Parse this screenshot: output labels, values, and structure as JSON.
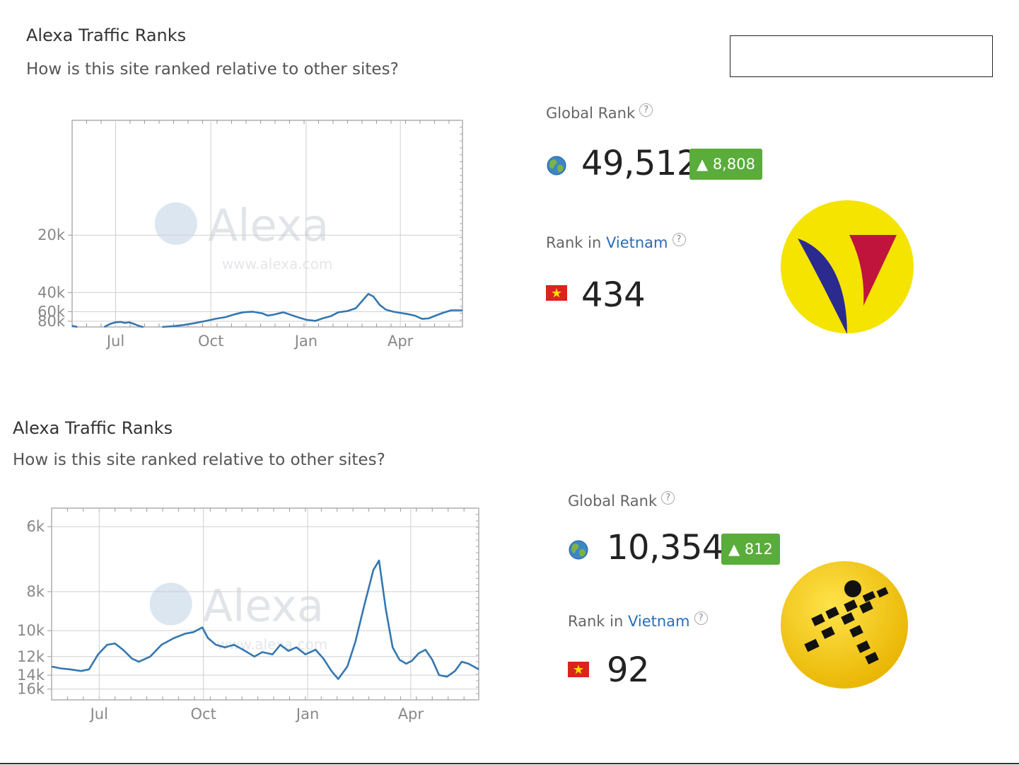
{
  "panels": [
    {
      "title": "Alexa Traffic Ranks",
      "subtitle": "How is this site ranked relative to other sites?",
      "global_rank_label": "Global Rank",
      "global_rank_value": "49,512",
      "global_rank_delta": "▲ 8,808",
      "country_rank_prefix": "Rank in",
      "country_name": "Vietnam",
      "country_rank_value": "434",
      "help_glyph": "?",
      "logo_icon": "v-shape-logo-icon",
      "colors": {
        "delta_badge": "#5aac3b",
        "link": "#2a6db5",
        "line": "#3577b0",
        "logo_bg": "#f5e300",
        "logo_blue": "#2b2a8f",
        "logo_red": "#c0143c"
      }
    },
    {
      "title": "Alexa Traffic Ranks",
      "subtitle": "How is this site ranked relative to other sites?",
      "global_rank_label": "Global Rank",
      "global_rank_value": "10,354",
      "global_rank_delta": "▲ 812",
      "country_rank_prefix": "Rank in",
      "country_name": "Vietnam",
      "country_rank_value": "92",
      "help_glyph": "?",
      "logo_icon": "running-man-logo-icon",
      "colors": {
        "delta_badge": "#5aac3b",
        "link": "#2a6db5",
        "line": "#3577b0",
        "logo_bg": "#f3c600",
        "logo_figure": "#111111"
      }
    }
  ],
  "chart_data": [
    {
      "type": "line",
      "title": "",
      "xlabel": "",
      "ylabel": "",
      "y_scale": "reciprocal (rank, smaller is higher)",
      "y_inverted": true,
      "ylim": [
        10000,
        100000
      ],
      "xlim": [
        "2015-05-20",
        "2016-05-31"
      ],
      "x_ticks": [
        {
          "x": "2015-07-01",
          "label": "Jul"
        },
        {
          "x": "2015-10-01",
          "label": "Oct"
        },
        {
          "x": "2016-01-01",
          "label": "Jan"
        },
        {
          "x": "2016-04-01",
          "label": "Apr"
        }
      ],
      "y_ticks": [
        {
          "y": 20000,
          "label": "20k"
        },
        {
          "y": 40000,
          "label": "40k"
        },
        {
          "y": 60000,
          "label": "60k"
        },
        {
          "y": 80000,
          "label": "80k"
        }
      ],
      "grid": true,
      "watermark": [
        "Alexa",
        "www.alexa.com"
      ],
      "series": [
        {
          "segments": [
            [
              [
                "2015-05-20",
                95000
              ],
              [
                "2015-05-25",
                100000
              ]
            ],
            [
              [
                "2015-06-20",
                100000
              ],
              [
                "2015-06-26",
                88000
              ],
              [
                "2015-07-01",
                83000
              ],
              [
                "2015-07-06",
                82000
              ],
              [
                "2015-07-10",
                85000
              ],
              [
                "2015-07-14",
                83000
              ],
              [
                "2015-07-20",
                90000
              ],
              [
                "2015-07-25",
                98000
              ],
              [
                "2015-07-28",
                100000
              ]
            ],
            [
              [
                "2015-08-15",
                100000
              ],
              [
                "2015-08-25",
                97000
              ],
              [
                "2015-09-05",
                92000
              ],
              [
                "2015-09-15",
                86000
              ],
              [
                "2015-09-25",
                80000
              ],
              [
                "2015-10-05",
                74000
              ],
              [
                "2015-10-15",
                70000
              ],
              [
                "2015-10-25",
                64000
              ],
              [
                "2015-11-01",
                61000
              ],
              [
                "2015-11-10",
                60000
              ],
              [
                "2015-11-20",
                63000
              ],
              [
                "2015-11-25",
                67000
              ],
              [
                "2015-12-01",
                65000
              ],
              [
                "2015-12-10",
                61000
              ],
              [
                "2015-12-18",
                66000
              ],
              [
                "2015-12-25",
                71000
              ],
              [
                "2016-01-01",
                76000
              ],
              [
                "2016-01-10",
                79000
              ],
              [
                "2016-01-18",
                72000
              ],
              [
                "2016-01-25",
                68000
              ],
              [
                "2016-02-01",
                61000
              ],
              [
                "2016-02-10",
                59000
              ],
              [
                "2016-02-18",
                55000
              ],
              [
                "2016-02-25",
                46000
              ],
              [
                "2016-03-01",
                41000
              ],
              [
                "2016-03-06",
                43000
              ],
              [
                "2016-03-12",
                51000
              ],
              [
                "2016-03-18",
                57000
              ],
              [
                "2016-03-25",
                60000
              ],
              [
                "2016-04-01",
                62000
              ],
              [
                "2016-04-08",
                64000
              ],
              [
                "2016-04-15",
                67000
              ],
              [
                "2016-04-22",
                74000
              ],
              [
                "2016-04-28",
                73000
              ],
              [
                "2016-05-05",
                67000
              ],
              [
                "2016-05-12",
                62000
              ],
              [
                "2016-05-20",
                58000
              ],
              [
                "2016-05-31",
                58000
              ]
            ]
          ]
        }
      ]
    },
    {
      "type": "line",
      "title": "",
      "xlabel": "",
      "ylabel": "",
      "y_scale": "reciprocal (rank, smaller is higher)",
      "y_inverted": true,
      "ylim": [
        5600,
        18000
      ],
      "xlim": [
        "2015-05-20",
        "2016-05-31"
      ],
      "x_ticks": [
        {
          "x": "2015-07-01",
          "label": "Jul"
        },
        {
          "x": "2015-10-01",
          "label": "Oct"
        },
        {
          "x": "2016-01-01",
          "label": "Jan"
        },
        {
          "x": "2016-04-01",
          "label": "Apr"
        }
      ],
      "y_ticks": [
        {
          "y": 6000,
          "label": "6k"
        },
        {
          "y": 8000,
          "label": "8k"
        },
        {
          "y": 10000,
          "label": "10k"
        },
        {
          "y": 12000,
          "label": "12k"
        },
        {
          "y": 14000,
          "label": "14k"
        },
        {
          "y": 16000,
          "label": "16k"
        }
      ],
      "grid": true,
      "watermark": [
        "Alexa",
        "www.alexa.com"
      ],
      "series": [
        {
          "segments": [
            [
              [
                "2015-05-20",
                13000
              ],
              [
                "2015-05-28",
                13200
              ],
              [
                "2015-06-05",
                13300
              ],
              [
                "2015-06-15",
                13500
              ],
              [
                "2015-06-22",
                13300
              ],
              [
                "2015-06-30",
                11800
              ],
              [
                "2015-07-08",
                11000
              ],
              [
                "2015-07-15",
                10900
              ],
              [
                "2015-07-22",
                11400
              ],
              [
                "2015-07-30",
                12200
              ],
              [
                "2015-08-05",
                12500
              ],
              [
                "2015-08-15",
                12000
              ],
              [
                "2015-08-25",
                11000
              ],
              [
                "2015-09-05",
                10500
              ],
              [
                "2015-09-15",
                10200
              ],
              [
                "2015-09-22",
                10100
              ],
              [
                "2015-09-30",
                9800
              ],
              [
                "2015-10-05",
                10500
              ],
              [
                "2015-10-12",
                11000
              ],
              [
                "2015-10-20",
                11200
              ],
              [
                "2015-10-28",
                11000
              ],
              [
                "2015-11-05",
                11400
              ],
              [
                "2015-11-15",
                12000
              ],
              [
                "2015-11-22",
                11600
              ],
              [
                "2015-12-01",
                11800
              ],
              [
                "2015-12-08",
                11000
              ],
              [
                "2015-12-15",
                11500
              ],
              [
                "2015-12-22",
                11200
              ],
              [
                "2015-12-30",
                11800
              ],
              [
                "2016-01-08",
                11400
              ],
              [
                "2016-01-15",
                12200
              ],
              [
                "2016-01-22",
                13500
              ],
              [
                "2016-01-28",
                14500
              ],
              [
                "2016-02-05",
                13000
              ],
              [
                "2016-02-12",
                10800
              ],
              [
                "2016-02-20",
                8600
              ],
              [
                "2016-02-28",
                7200
              ],
              [
                "2016-03-04",
                6900
              ],
              [
                "2016-03-10",
                8800
              ],
              [
                "2016-03-16",
                11200
              ],
              [
                "2016-03-22",
                12300
              ],
              [
                "2016-03-28",
                12700
              ],
              [
                "2016-04-02",
                12400
              ],
              [
                "2016-04-08",
                11700
              ],
              [
                "2016-04-14",
                11400
              ],
              [
                "2016-04-20",
                12300
              ],
              [
                "2016-04-26",
                14000
              ],
              [
                "2016-05-03",
                14200
              ],
              [
                "2016-05-10",
                13500
              ],
              [
                "2016-05-16",
                12500
              ],
              [
                "2016-05-22",
                12700
              ],
              [
                "2016-05-31",
                13300
              ]
            ]
          ]
        }
      ]
    }
  ]
}
